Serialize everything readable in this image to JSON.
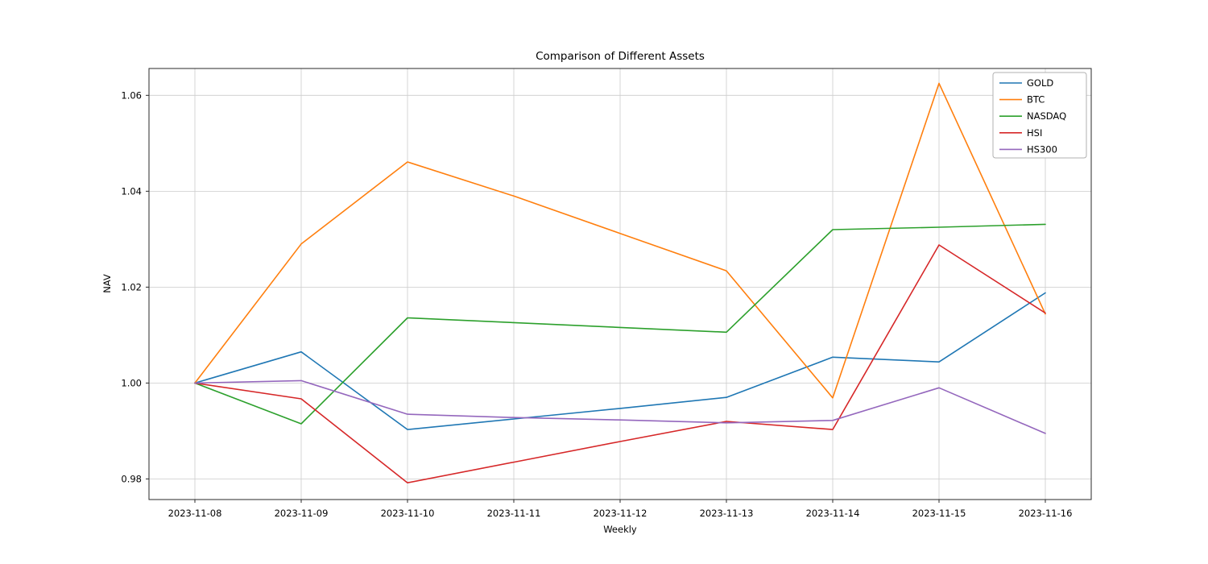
{
  "chart_data": {
    "type": "line",
    "title": "Comparison of Different Assets",
    "xlabel": "Weekly",
    "ylabel": "NAV",
    "x": [
      "2023-11-08",
      "2023-11-09",
      "2023-11-10",
      "2023-11-11",
      "2023-11-12",
      "2023-11-13",
      "2023-11-14",
      "2023-11-15",
      "2023-11-16"
    ],
    "ytick_values": [
      0.98,
      1.0,
      1.02,
      1.04,
      1.06
    ],
    "ytick_labels": [
      "0.98",
      "1.00",
      "1.02",
      "1.04",
      "1.06"
    ],
    "ylim": [
      0.9757,
      1.0656
    ],
    "grid": true,
    "legend_position": "upper right",
    "series": [
      {
        "name": "GOLD",
        "color": "#1f77b4",
        "values": [
          1.0,
          1.0065,
          0.9903,
          0.9925,
          0.9947,
          0.997,
          1.0054,
          1.0044,
          1.0188
        ]
      },
      {
        "name": "BTC",
        "color": "#ff7f0e",
        "values": [
          1.0,
          1.029,
          1.0461,
          1.039,
          1.0312,
          1.0234,
          0.9969,
          1.0625,
          1.0144
        ]
      },
      {
        "name": "NASDAQ",
        "color": "#2ca02c",
        "values": [
          1.0,
          0.9915,
          1.0136,
          1.0126,
          1.0116,
          1.0106,
          1.032,
          1.0325,
          1.0331
        ]
      },
      {
        "name": "HSI",
        "color": "#d62728",
        "values": [
          1.0,
          0.9967,
          0.9792,
          0.9835,
          0.9878,
          0.992,
          0.9903,
          1.0288,
          1.0146
        ]
      },
      {
        "name": "HS300",
        "color": "#9467bd",
        "values": [
          1.0,
          1.0005,
          0.9935,
          0.9928,
          0.9923,
          0.9917,
          0.9922,
          0.999,
          0.9895
        ]
      }
    ],
    "colors": {
      "background": "#ffffff",
      "grid": "#cccccc",
      "spine": "#2a2a2a",
      "text": "#000000",
      "legend_border": "#b0b0b0"
    }
  }
}
